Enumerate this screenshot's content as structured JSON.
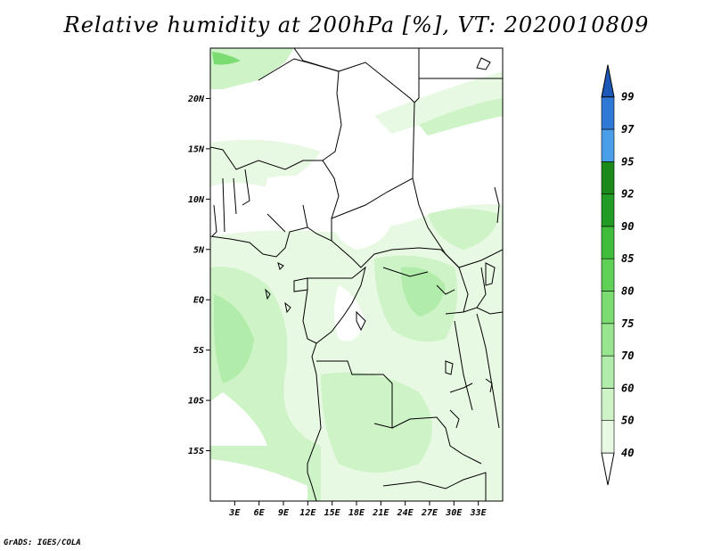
{
  "title": "Relative humidity at 200hPa [%], VT: 2020010809",
  "credit": "GrADS: IGES/COLA",
  "map": {
    "lon_range": [
      0,
      36
    ],
    "lat_range": [
      -20,
      25
    ],
    "lon_ticks": [
      "3E",
      "6E",
      "9E",
      "12E",
      "15E",
      "18E",
      "21E",
      "24E",
      "27E",
      "30E",
      "33E"
    ],
    "lat_ticks": [
      "20N",
      "15N",
      "10N",
      "5N",
      "EQ",
      "5S",
      "10S",
      "15S"
    ]
  },
  "colorbar": {
    "labels": [
      "40",
      "50",
      "60",
      "70",
      "75",
      "80",
      "85",
      "90",
      "92",
      "95",
      "97",
      "99"
    ],
    "colors": [
      "#ffffff",
      "#e8f9e3",
      "#cdf3c6",
      "#b2ecaa",
      "#97e58e",
      "#7bdc71",
      "#5fd156",
      "#3fbd3b",
      "#229c24",
      "#1b8a1b",
      "#4a9ee8",
      "#2f79d6",
      "#1c58b8"
    ]
  }
}
